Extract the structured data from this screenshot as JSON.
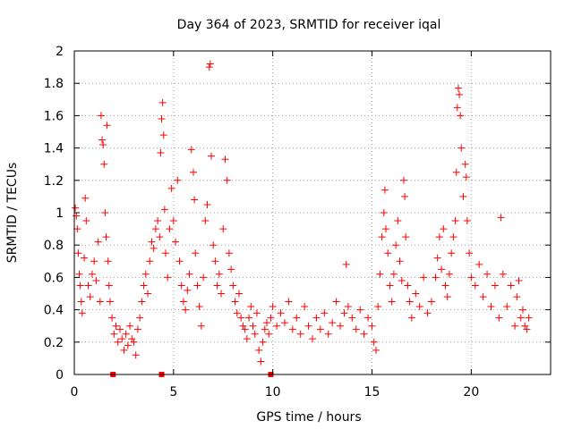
{
  "chart_data": {
    "type": "scatter",
    "title": "Day 364 of 2023, SRMTID for receiver iqal",
    "xlabel": "GPS time / hours",
    "ylabel": "SRMTID / TECUs",
    "xlim": [
      0,
      24
    ],
    "ylim": [
      0,
      2
    ],
    "x_ticks": [
      0,
      5,
      10,
      15,
      20
    ],
    "x_tick_labels": [
      "0",
      "5",
      "10",
      "15",
      "20"
    ],
    "y_ticks": [
      0,
      0.2,
      0.4,
      0.6,
      0.8,
      1,
      1.2,
      1.4,
      1.6,
      1.8,
      2
    ],
    "y_tick_labels": [
      "0",
      "0.2",
      "0.4",
      "0.6",
      "0.8",
      "1",
      "1.2",
      "1.4",
      "1.6",
      "1.8",
      "2"
    ],
    "grid": true,
    "marker": "+",
    "color": "#ff0000",
    "series": [
      {
        "name": "SRMTID",
        "points": [
          [
            0.05,
            1.03
          ],
          [
            0.1,
            0.98
          ],
          [
            0.15,
            0.9
          ],
          [
            0.2,
            0.75
          ],
          [
            0.25,
            0.62
          ],
          [
            0.3,
            0.55
          ],
          [
            0.35,
            0.45
          ],
          [
            0.4,
            0.38
          ],
          [
            0.5,
            0.72
          ],
          [
            0.55,
            1.09
          ],
          [
            0.6,
            0.95
          ],
          [
            0.7,
            0.55
          ],
          [
            0.8,
            0.48
          ],
          [
            0.9,
            0.62
          ],
          [
            1.0,
            0.7
          ],
          [
            1.1,
            0.58
          ],
          [
            1.2,
            0.82
          ],
          [
            1.3,
            0.45
          ],
          [
            1.35,
            1.6
          ],
          [
            1.4,
            1.45
          ],
          [
            1.45,
            1.42
          ],
          [
            1.5,
            1.3
          ],
          [
            1.55,
            1.0
          ],
          [
            1.6,
            0.85
          ],
          [
            1.65,
            1.54
          ],
          [
            1.7,
            0.7
          ],
          [
            1.75,
            0.55
          ],
          [
            1.8,
            0.45
          ],
          [
            1.9,
            0.35
          ],
          [
            2.0,
            0.25
          ],
          [
            2.1,
            0.3
          ],
          [
            2.2,
            0.2
          ],
          [
            2.3,
            0.28
          ],
          [
            2.4,
            0.22
          ],
          [
            2.5,
            0.15
          ],
          [
            2.6,
            0.25
          ],
          [
            2.7,
            0.18
          ],
          [
            2.8,
            0.3
          ],
          [
            2.9,
            0.22
          ],
          [
            3.0,
            0.2
          ],
          [
            3.1,
            0.12
          ],
          [
            3.2,
            0.28
          ],
          [
            3.3,
            0.35
          ],
          [
            3.4,
            0.45
          ],
          [
            3.5,
            0.55
          ],
          [
            3.6,
            0.62
          ],
          [
            3.7,
            0.5
          ],
          [
            3.8,
            0.7
          ],
          [
            3.9,
            0.82
          ],
          [
            4.0,
            0.78
          ],
          [
            4.1,
            0.9
          ],
          [
            4.2,
            0.95
          ],
          [
            4.3,
            0.85
          ],
          [
            4.35,
            1.37
          ],
          [
            4.4,
            1.58
          ],
          [
            4.45,
            1.68
          ],
          [
            4.5,
            1.48
          ],
          [
            4.55,
            1.02
          ],
          [
            4.6,
            0.75
          ],
          [
            4.7,
            0.6
          ],
          [
            4.8,
            0.9
          ],
          [
            4.9,
            1.15
          ],
          [
            5.0,
            0.95
          ],
          [
            5.1,
            0.82
          ],
          [
            5.2,
            1.2
          ],
          [
            5.3,
            0.7
          ],
          [
            5.4,
            0.55
          ],
          [
            5.5,
            0.45
          ],
          [
            5.6,
            0.4
          ],
          [
            5.7,
            0.52
          ],
          [
            5.8,
            0.62
          ],
          [
            5.9,
            1.39
          ],
          [
            6.0,
            1.25
          ],
          [
            6.05,
            1.08
          ],
          [
            6.1,
            0.75
          ],
          [
            6.2,
            0.55
          ],
          [
            6.3,
            0.42
          ],
          [
            6.4,
            0.3
          ],
          [
            6.5,
            0.6
          ],
          [
            6.6,
            0.95
          ],
          [
            6.7,
            1.05
          ],
          [
            6.8,
            1.9
          ],
          [
            6.85,
            1.92
          ],
          [
            6.9,
            1.35
          ],
          [
            7.0,
            0.8
          ],
          [
            7.1,
            0.7
          ],
          [
            7.2,
            0.55
          ],
          [
            7.3,
            0.62
          ],
          [
            7.4,
            0.5
          ],
          [
            7.5,
            0.9
          ],
          [
            7.6,
            1.33
          ],
          [
            7.7,
            1.2
          ],
          [
            7.8,
            0.75
          ],
          [
            7.9,
            0.65
          ],
          [
            8.0,
            0.55
          ],
          [
            8.1,
            0.45
          ],
          [
            8.2,
            0.38
          ],
          [
            8.3,
            0.5
          ],
          [
            8.4,
            0.35
          ],
          [
            8.5,
            0.3
          ],
          [
            8.6,
            0.28
          ],
          [
            8.7,
            0.22
          ],
          [
            8.8,
            0.35
          ],
          [
            8.9,
            0.42
          ],
          [
            9.0,
            0.3
          ],
          [
            9.1,
            0.25
          ],
          [
            9.2,
            0.38
          ],
          [
            9.3,
            0.15
          ],
          [
            9.4,
            0.08
          ],
          [
            9.5,
            0.2
          ],
          [
            9.6,
            0.28
          ],
          [
            9.7,
            0.32
          ],
          [
            9.8,
            0.25
          ],
          [
            9.9,
            0.35
          ],
          [
            10.0,
            0.42
          ],
          [
            10.2,
            0.3
          ],
          [
            10.4,
            0.38
          ],
          [
            10.6,
            0.32
          ],
          [
            10.8,
            0.45
          ],
          [
            11.0,
            0.28
          ],
          [
            11.2,
            0.35
          ],
          [
            11.4,
            0.25
          ],
          [
            11.6,
            0.42
          ],
          [
            11.8,
            0.3
          ],
          [
            12.0,
            0.22
          ],
          [
            12.2,
            0.35
          ],
          [
            12.4,
            0.28
          ],
          [
            12.6,
            0.38
          ],
          [
            12.8,
            0.25
          ],
          [
            13.0,
            0.32
          ],
          [
            13.2,
            0.45
          ],
          [
            13.4,
            0.3
          ],
          [
            13.6,
            0.38
          ],
          [
            13.7,
            0.68
          ],
          [
            13.8,
            0.42
          ],
          [
            14.0,
            0.35
          ],
          [
            14.2,
            0.28
          ],
          [
            14.4,
            0.4
          ],
          [
            14.6,
            0.25
          ],
          [
            14.8,
            0.35
          ],
          [
            15.0,
            0.3
          ],
          [
            15.1,
            0.2
          ],
          [
            15.2,
            0.15
          ],
          [
            15.3,
            0.42
          ],
          [
            15.4,
            0.62
          ],
          [
            15.5,
            0.85
          ],
          [
            15.6,
            1.0
          ],
          [
            15.65,
            1.14
          ],
          [
            15.7,
            0.9
          ],
          [
            15.8,
            0.75
          ],
          [
            15.9,
            0.55
          ],
          [
            16.0,
            0.45
          ],
          [
            16.1,
            0.62
          ],
          [
            16.2,
            0.8
          ],
          [
            16.3,
            0.95
          ],
          [
            16.4,
            0.7
          ],
          [
            16.5,
            0.58
          ],
          [
            16.6,
            1.2
          ],
          [
            16.65,
            1.1
          ],
          [
            16.7,
            0.85
          ],
          [
            16.8,
            0.55
          ],
          [
            16.9,
            0.45
          ],
          [
            17.0,
            0.35
          ],
          [
            17.2,
            0.5
          ],
          [
            17.4,
            0.42
          ],
          [
            17.6,
            0.6
          ],
          [
            17.8,
            0.38
          ],
          [
            18.0,
            0.45
          ],
          [
            18.2,
            0.6
          ],
          [
            18.3,
            0.72
          ],
          [
            18.4,
            0.85
          ],
          [
            18.5,
            0.65
          ],
          [
            18.6,
            0.9
          ],
          [
            18.7,
            0.55
          ],
          [
            18.8,
            0.48
          ],
          [
            18.9,
            0.62
          ],
          [
            19.0,
            0.75
          ],
          [
            19.1,
            0.85
          ],
          [
            19.2,
            0.95
          ],
          [
            19.25,
            1.25
          ],
          [
            19.3,
            1.65
          ],
          [
            19.35,
            1.77
          ],
          [
            19.4,
            1.73
          ],
          [
            19.45,
            1.6
          ],
          [
            19.5,
            1.4
          ],
          [
            19.6,
            1.1
          ],
          [
            19.7,
            1.3
          ],
          [
            19.75,
            1.22
          ],
          [
            19.8,
            0.95
          ],
          [
            19.9,
            0.75
          ],
          [
            20.0,
            0.6
          ],
          [
            20.2,
            0.55
          ],
          [
            20.4,
            0.68
          ],
          [
            20.6,
            0.48
          ],
          [
            20.8,
            0.62
          ],
          [
            21.0,
            0.42
          ],
          [
            21.2,
            0.55
          ],
          [
            21.4,
            0.35
          ],
          [
            21.5,
            0.97
          ],
          [
            21.6,
            0.62
          ],
          [
            21.8,
            0.42
          ],
          [
            22.0,
            0.55
          ],
          [
            22.2,
            0.3
          ],
          [
            22.3,
            0.48
          ],
          [
            22.4,
            0.58
          ],
          [
            22.5,
            0.35
          ],
          [
            22.6,
            0.4
          ],
          [
            22.7,
            0.3
          ],
          [
            22.8,
            0.28
          ],
          [
            22.9,
            0.35
          ]
        ]
      },
      {
        "name": "zero-markers",
        "marker": "square",
        "points": [
          [
            1.95,
            0
          ],
          [
            4.4,
            0
          ],
          [
            9.9,
            0
          ]
        ]
      }
    ]
  }
}
